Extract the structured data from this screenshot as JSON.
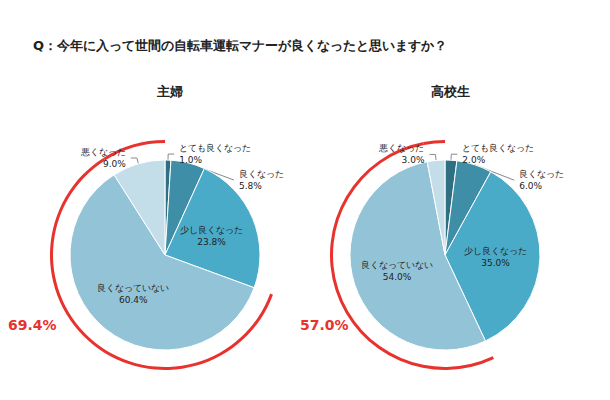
{
  "title": "Q：今年に入って世間の自転車運転マナーが良くなったと思いますか？",
  "chart_data": [
    {
      "type": "pie",
      "title": "主婦",
      "categories": [
        "とても良くなった",
        "良くなった",
        "少し良くなった",
        "良くなっていない",
        "悪くなった"
      ],
      "values": [
        1.0,
        5.8,
        23.8,
        60.4,
        9.0
      ],
      "value_labels": [
        "1.0%",
        "5.8%",
        "23.8%",
        "60.4%",
        "9.0%"
      ],
      "colors": [
        "#2f6f84",
        "#3d8ea6",
        "#4aabc9",
        "#93c3d7",
        "#c3dde9"
      ],
      "data_labels": true,
      "legend": false,
      "annotation": {
        "text": "69.4%",
        "categories": [
          "良くなっていない",
          "悪くなった"
        ]
      }
    },
    {
      "type": "pie",
      "title": "高校生",
      "categories": [
        "とても良くなった",
        "良くなった",
        "少し良くなった",
        "良くなっていない",
        "悪くなった"
      ],
      "values": [
        2.0,
        6.0,
        35.0,
        54.0,
        3.0
      ],
      "value_labels": [
        "2.0%",
        "6.0%",
        "35.0%",
        "54.0%",
        "3.0%"
      ],
      "colors": [
        "#2f6f84",
        "#3d8ea6",
        "#4aabc9",
        "#93c3d7",
        "#c3dde9"
      ],
      "data_labels": true,
      "legend": false,
      "annotation": {
        "text": "57.0%",
        "categories": [
          "良くなっていない",
          "悪くなった"
        ]
      }
    }
  ]
}
